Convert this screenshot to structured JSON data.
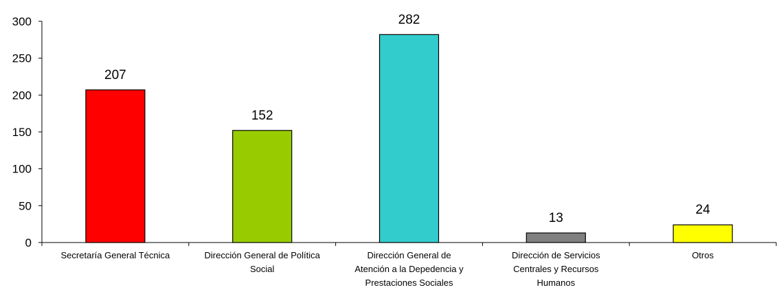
{
  "chart_data": {
    "type": "bar",
    "title": "",
    "xlabel": "",
    "ylabel": "",
    "ylim": [
      0,
      300
    ],
    "yticks": [
      0,
      50,
      100,
      150,
      200,
      250,
      300
    ],
    "grid": false,
    "legend": "none",
    "categories": [
      [
        "Secretaría General Técnica"
      ],
      [
        "Dirección General de Política",
        "Social"
      ],
      [
        "Dirección General de",
        "Atención a la Depedencia y",
        "Prestaciones Sociales"
      ],
      [
        "Dirección de Servicios",
        "Centrales y Recursos",
        "Humanos"
      ],
      [
        "Otros"
      ]
    ],
    "values": [
      207,
      152,
      282,
      13,
      24
    ],
    "colors": [
      "#ff0000",
      "#99cc00",
      "#33cccc",
      "#808080",
      "#ffff00"
    ]
  }
}
